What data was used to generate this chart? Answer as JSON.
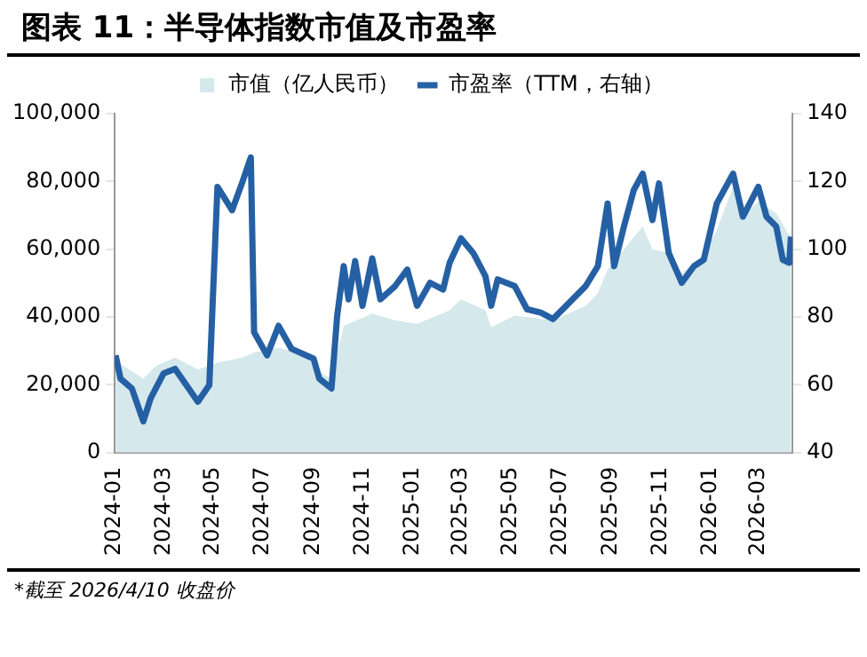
{
  "chart_data": {
    "type": "line",
    "title": "图表 11：半导体指数市值及市盈率",
    "annotations": [
      "*截至 2026/4/10 收盘价"
    ],
    "legend": "top",
    "grid": false,
    "xlim": [
      "2024-01-01",
      "2026-04-12"
    ],
    "xticks": [
      "2024-01",
      "2024-03",
      "2024-05",
      "2024-07",
      "2024-09",
      "2024-11",
      "2025-01",
      "2025-03",
      "2025-05",
      "2025-07",
      "2025-09",
      "2025-11",
      "2026-01",
      "2026-03"
    ],
    "ylim": [
      0,
      100000
    ],
    "yticks": [
      0,
      {
        "value": 20000,
        "label": "20,000"
      },
      {
        "value": 40000,
        "label": "40,000"
      },
      {
        "value": 60000,
        "label": "60,000"
      },
      {
        "value": 80000,
        "label": "80,000"
      },
      {
        "value": 100000,
        "label": "100,000"
      }
    ],
    "y2lim": [
      40,
      140
    ],
    "y2ticks": [
      40,
      60,
      80,
      100,
      120,
      140
    ],
    "series": [
      {
        "name": "市值（亿人民币）",
        "type": "area",
        "color": "#d5e8ec",
        "x": [
          "2024-01-02",
          "2024-01-22",
          "2024-02-05",
          "2024-02-20",
          "2024-03-15",
          "2024-04-12",
          "2024-05-06",
          "2024-06-05",
          "2024-06-20",
          "2024-07-20",
          "2024-08-20",
          "2024-09-10",
          "2024-09-23",
          "2024-10-08",
          "2024-11-12",
          "2024-12-10",
          "2025-01-06",
          "2025-02-15",
          "2025-03-01",
          "2025-03-31",
          "2025-04-07",
          "2025-05-06",
          "2025-06-22",
          "2025-08-01",
          "2025-08-16",
          "2025-08-28",
          "2025-09-17",
          "2025-10-10",
          "2025-10-22",
          "2025-11-11",
          "2025-11-27",
          "2025-12-24",
          "2026-01-09",
          "2026-01-29",
          "2026-02-10",
          "2026-03-01",
          "2026-03-23",
          "2026-04-08",
          "2026-04-10"
        ],
        "values": [
          26900,
          24000,
          21800,
          25500,
          28000,
          24500,
          26500,
          28000,
          29500,
          31000,
          29000,
          23500,
          21800,
          37400,
          41000,
          39000,
          38000,
          42000,
          45200,
          42000,
          37000,
          40400,
          39000,
          43300,
          47000,
          54000,
          60000,
          66700,
          60000,
          58900,
          53000,
          58000,
          65700,
          78400,
          70000,
          74000,
          70600,
          64000,
          65700
        ]
      },
      {
        "name": "市盈率（TTM，右轴）",
        "type": "line",
        "axis": "y2",
        "color": "#2560a4",
        "x": [
          "2024-01-02",
          "2024-01-08",
          "2024-01-22",
          "2024-02-05",
          "2024-02-14",
          "2024-03-01",
          "2024-03-15",
          "2024-04-12",
          "2024-04-26",
          "2024-05-06",
          "2024-05-24",
          "2024-06-05",
          "2024-06-16",
          "2024-06-20",
          "2024-07-06",
          "2024-07-20",
          "2024-08-05",
          "2024-09-01",
          "2024-09-08",
          "2024-09-23",
          "2024-09-30",
          "2024-10-08",
          "2024-10-14",
          "2024-10-22",
          "2024-10-31",
          "2024-11-12",
          "2024-11-22",
          "2024-12-10",
          "2024-12-25",
          "2025-01-06",
          "2025-01-22",
          "2025-02-07",
          "2025-02-15",
          "2025-03-01",
          "2025-03-16",
          "2025-03-31",
          "2025-04-07",
          "2025-04-15",
          "2025-05-06",
          "2025-05-21",
          "2025-06-07",
          "2025-06-22",
          "2025-07-08",
          "2025-08-01",
          "2025-08-16",
          "2025-08-28",
          "2025-09-05",
          "2025-09-17",
          "2025-09-29",
          "2025-10-10",
          "2025-10-22",
          "2025-10-30",
          "2025-11-11",
          "2025-11-27",
          "2025-12-12",
          "2025-12-24",
          "2026-01-09",
          "2026-01-29",
          "2026-02-10",
          "2026-03-01",
          "2026-03-11",
          "2026-03-23",
          "2026-03-31",
          "2026-04-08",
          "2026-04-10"
        ],
        "values": [
          68.7,
          61.8,
          58.9,
          49.2,
          56,
          63.4,
          64.7,
          55,
          59.9,
          118.4,
          111.5,
          119.4,
          127.1,
          75.5,
          68.7,
          77.4,
          70.6,
          67.7,
          61.8,
          58.9,
          80.4,
          95,
          85.2,
          96.5,
          83.3,
          97.3,
          85.2,
          89.1,
          94,
          83.3,
          90.1,
          88.1,
          96,
          103.2,
          98.9,
          92,
          83.3,
          91.1,
          89.1,
          82.3,
          81.3,
          79.4,
          83.3,
          89.1,
          95,
          113.5,
          95,
          106.7,
          117.4,
          122.3,
          108.6,
          119.4,
          98.9,
          90.1,
          95,
          96.9,
          113.5,
          122.3,
          109.6,
          118.4,
          109.6,
          106.7,
          96.9,
          96,
          103.7
        ]
      }
    ]
  }
}
